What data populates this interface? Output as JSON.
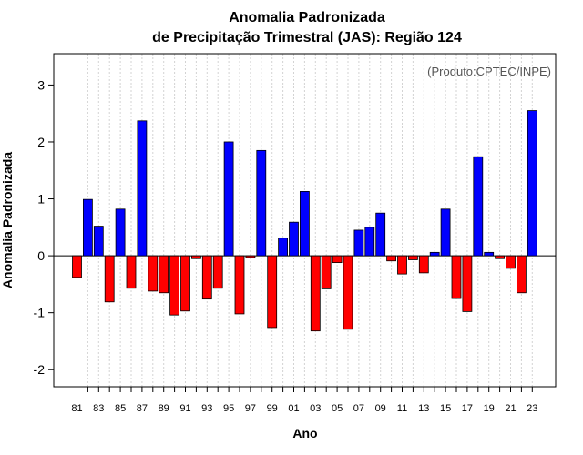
{
  "chart_data": {
    "type": "bar",
    "title_line1": "Anomalia Padronizada",
    "title_line2": "de Precipitação Trimestral (JAS): Região 124",
    "xlabel": "Ano",
    "ylabel": "Anomalia Padronizada",
    "source_note": "(Produto:CPTEC/INPE)",
    "ylim": [
      -2.3,
      3.55
    ],
    "yticks": [
      -2,
      -1,
      0,
      1,
      2,
      3
    ],
    "ytick_labels": [
      "-2",
      "-1",
      "0",
      "1",
      "2",
      "3"
    ],
    "xtick_labels": [
      "81",
      "83",
      "85",
      "87",
      "89",
      "91",
      "93",
      "95",
      "97",
      "99",
      "01",
      "03",
      "05",
      "07",
      "09",
      "11",
      "13",
      "15",
      "17",
      "19",
      "21",
      "23"
    ],
    "categories": [
      "1981",
      "1982",
      "1983",
      "1984",
      "1985",
      "1986",
      "1987",
      "1988",
      "1989",
      "1990",
      "1991",
      "1992",
      "1993",
      "1994",
      "1995",
      "1996",
      "1997",
      "1998",
      "1999",
      "2000",
      "2001",
      "2002",
      "2003",
      "2004",
      "2005",
      "2006",
      "2007",
      "2008",
      "2009",
      "2010",
      "2011",
      "2012",
      "2013",
      "2014",
      "2015",
      "2016",
      "2017",
      "2018",
      "2019",
      "2020",
      "2021",
      "2022",
      "2023"
    ],
    "values": [
      -0.38,
      0.99,
      0.52,
      -0.81,
      0.82,
      -0.57,
      2.37,
      -0.62,
      -0.65,
      -1.04,
      -0.97,
      -0.05,
      -0.76,
      -0.57,
      2.0,
      -1.02,
      -0.03,
      1.85,
      -1.26,
      0.31,
      0.59,
      1.13,
      -1.32,
      -0.58,
      -0.12,
      -1.29,
      0.45,
      0.5,
      0.75,
      -0.09,
      -0.32,
      -0.07,
      -0.3,
      0.06,
      0.82,
      -0.75,
      -0.98,
      1.74,
      0.06,
      -0.05,
      -0.22,
      -0.65,
      2.55
    ],
    "colors": {
      "positive": "#0000ff",
      "negative": "#ff0000",
      "grid": "#d3d3d3",
      "axis": "#000000"
    }
  }
}
